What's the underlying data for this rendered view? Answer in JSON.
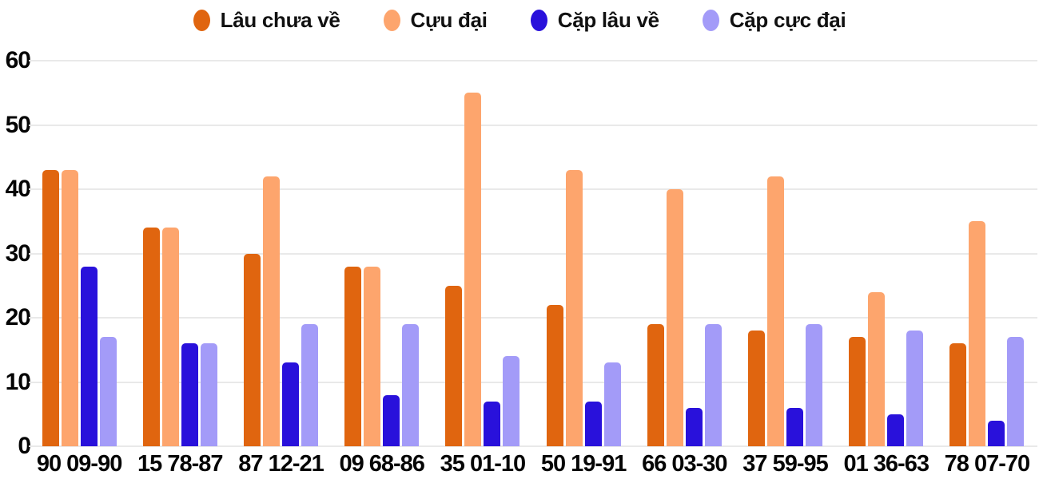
{
  "legend": [
    {
      "label": "Lâu chưa về",
      "color": "#E0650F"
    },
    {
      "label": "Cựu đại",
      "color": "#FDA56D"
    },
    {
      "label": "Cặp lâu về",
      "color": "#2911DB"
    },
    {
      "label": "Cặp cực đại",
      "color": "#A39BF8"
    }
  ],
  "colors": {
    "gridline": "#e9e9e9",
    "text": "#050505",
    "background": "#ffffff"
  },
  "y_axis": {
    "ticks": [
      0,
      10,
      20,
      30,
      40,
      50,
      60
    ]
  },
  "chart_data": {
    "type": "bar",
    "title": "",
    "xlabel": "",
    "ylabel": "",
    "ylim": [
      0,
      60
    ],
    "grid": true,
    "legend_position": "top",
    "categories": [
      "90 09-90",
      "15 78-87",
      "87 12-21",
      "09 68-86",
      "35 01-10",
      "50 19-91",
      "66 03-30",
      "37 59-95",
      "01 36-63",
      "78 07-70"
    ],
    "series": [
      {
        "name": "Lâu chưa về",
        "color": "#E0650F",
        "values": [
          43,
          34,
          30,
          28,
          25,
          22,
          19,
          18,
          17,
          16
        ]
      },
      {
        "name": "Cựu đại",
        "color": "#FDA56D",
        "values": [
          43,
          34,
          42,
          28,
          55,
          43,
          40,
          42,
          24,
          35
        ]
      },
      {
        "name": "Cặp lâu về",
        "color": "#2911DB",
        "values": [
          28,
          16,
          13,
          8,
          7,
          7,
          6,
          6,
          5,
          4
        ]
      },
      {
        "name": "Cặp cực đại",
        "color": "#A39BF8",
        "values": [
          17,
          16,
          19,
          19,
          14,
          13,
          19,
          19,
          18,
          17
        ]
      }
    ]
  }
}
